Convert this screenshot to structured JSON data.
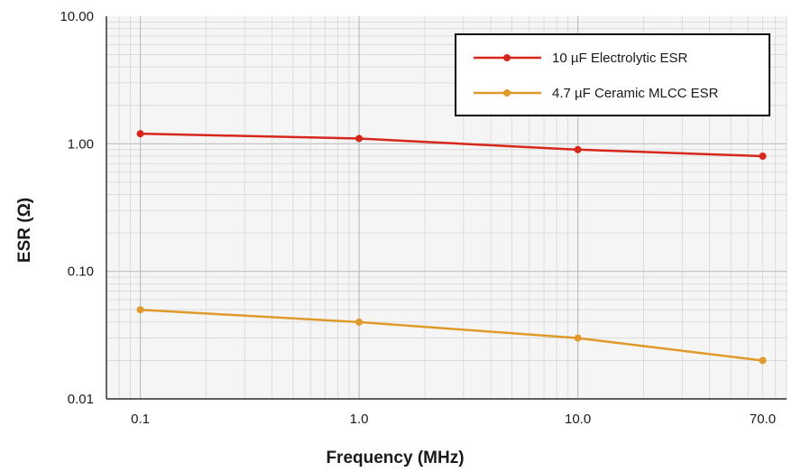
{
  "chart_data": {
    "type": "line",
    "xscale": "log",
    "yscale": "log",
    "xlabel": "Frequency (MHz)",
    "ylabel": "ESR (Ω)",
    "xlim": [
      0.07,
      90
    ],
    "ylim": [
      0.01,
      10
    ],
    "x_ticks": [
      {
        "value": 0.1,
        "label": "0.1"
      },
      {
        "value": 1,
        "label": "1.0"
      },
      {
        "value": 10,
        "label": "10.0"
      },
      {
        "value": 70,
        "label": "70.0"
      }
    ],
    "y_ticks": [
      {
        "value": 0.01,
        "label": "0.01"
      },
      {
        "value": 0.1,
        "label": "0.10"
      },
      {
        "value": 1,
        "label": "1.00"
      },
      {
        "value": 10,
        "label": "10.00"
      }
    ],
    "grid": true,
    "legend_position": "top-right",
    "series": [
      {
        "name": "10 µF Electrolytic ESR",
        "color": "#d7261c",
        "points": [
          [
            0.1,
            1.2
          ],
          [
            1,
            1.1
          ],
          [
            10,
            0.9
          ],
          [
            70,
            0.8
          ]
        ]
      },
      {
        "name": "4.7 µF Ceramic MLCC ESR",
        "color": "#e09a2a",
        "points": [
          [
            0.1,
            0.05
          ],
          [
            1,
            0.04
          ],
          [
            10,
            0.03
          ],
          [
            70,
            0.02
          ]
        ]
      }
    ]
  }
}
